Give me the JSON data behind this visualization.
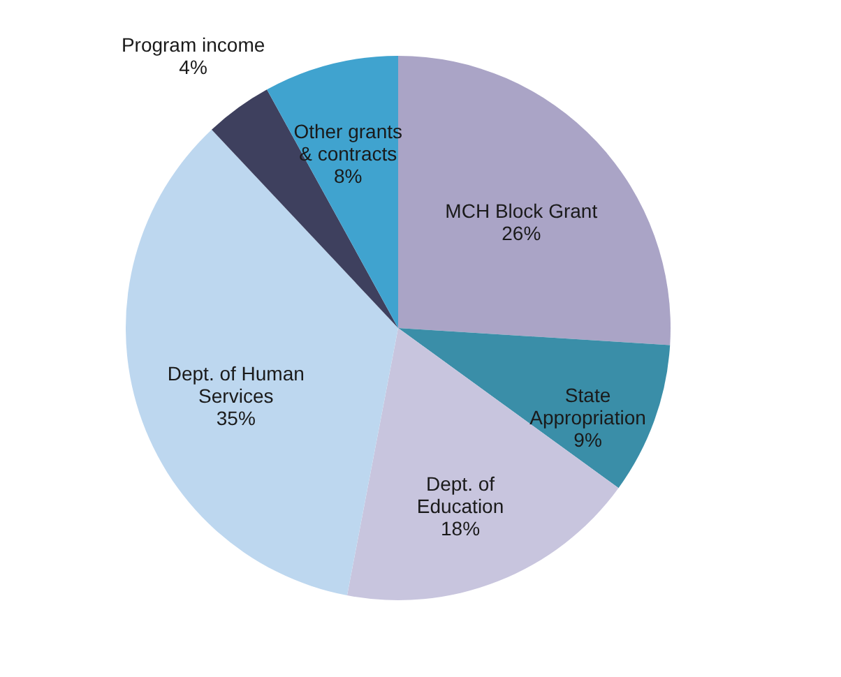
{
  "chart_data": {
    "type": "pie",
    "categories": [
      "MCH Block Grant",
      "State Appropriation",
      "Dept. of Education",
      "Dept. of Human Services",
      "Program income",
      "Other grants & contracts"
    ],
    "values": [
      26,
      9,
      18,
      35,
      4,
      8
    ],
    "colors": [
      "#aaa4c6",
      "#3a8ea8",
      "#c8c5de",
      "#bdd7ef",
      "#3e405e",
      "#40a3cf"
    ],
    "value_labels": [
      "26%",
      "9%",
      "18%",
      "35%",
      "4%",
      "8%"
    ],
    "legend": false
  }
}
